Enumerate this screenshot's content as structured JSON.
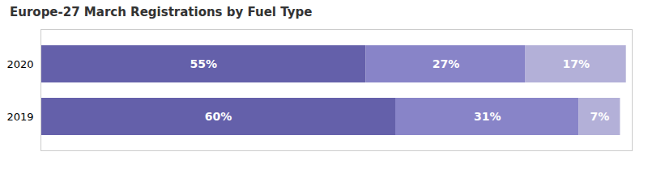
{
  "chart_data": {
    "type": "bar",
    "orientation": "horizontal",
    "stacked": true,
    "title": "Europe-27 March Registrations by Fuel Type",
    "categories": [
      "2020",
      "2019"
    ],
    "series": [
      {
        "values": [
          55,
          60
        ],
        "value_labels": [
          "55%",
          "60%"
        ],
        "color": "#6460aa"
      },
      {
        "values": [
          27,
          31
        ],
        "value_labels": [
          "27%",
          "31%"
        ],
        "color": "#8884c8"
      },
      {
        "values": [
          17,
          7
        ],
        "value_labels": [
          "17%",
          "7%"
        ],
        "color": "#b3b0d8"
      }
    ],
    "xlim": [
      0,
      100
    ],
    "data_labels": true,
    "tick_labels": "y"
  }
}
